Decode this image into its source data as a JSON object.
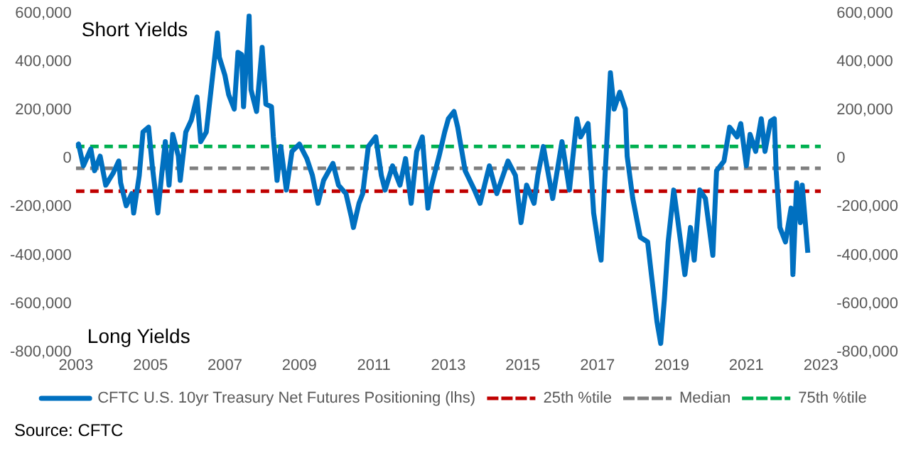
{
  "chart_data": {
    "type": "line",
    "x": [
      2003.0,
      2003.07,
      2003.2,
      2003.4,
      2003.5,
      2003.65,
      2003.8,
      2004.0,
      2004.15,
      2004.2,
      2004.35,
      2004.5,
      2004.55,
      2004.7,
      2004.8,
      2004.95,
      2005.05,
      2005.2,
      2005.3,
      2005.4,
      2005.5,
      2005.6,
      2005.75,
      2005.8,
      2005.95,
      2006.1,
      2006.25,
      2006.35,
      2006.5,
      2006.65,
      2006.8,
      2006.85,
      2007.0,
      2007.1,
      2007.25,
      2007.35,
      2007.45,
      2007.5,
      2007.65,
      2007.7,
      2007.85,
      2008.0,
      2008.1,
      2008.25,
      2008.3,
      2008.4,
      2008.5,
      2008.65,
      2008.8,
      2009.0,
      2009.2,
      2009.35,
      2009.5,
      2009.65,
      2009.9,
      2010.05,
      2010.25,
      2010.4,
      2010.45,
      2010.6,
      2010.7,
      2010.85,
      2011.05,
      2011.2,
      2011.3,
      2011.5,
      2011.7,
      2011.85,
      2012.0,
      2012.15,
      2012.3,
      2012.45,
      2012.55,
      2012.75,
      2012.9,
      2013.0,
      2013.15,
      2013.25,
      2013.45,
      2013.7,
      2013.85,
      2014.1,
      2014.3,
      2014.6,
      2014.8,
      2014.95,
      2015.1,
      2015.3,
      2015.4,
      2015.55,
      2015.8,
      2016.05,
      2016.25,
      2016.45,
      2016.55,
      2016.75,
      2016.9,
      2017.05,
      2017.1,
      2017.2,
      2017.35,
      2017.45,
      2017.6,
      2017.75,
      2017.8,
      2017.95,
      2018.15,
      2018.35,
      2018.45,
      2018.6,
      2018.7,
      2018.8,
      2018.9,
      2019.05,
      2019.15,
      2019.35,
      2019.5,
      2019.6,
      2019.75,
      2019.9,
      2020.1,
      2020.2,
      2020.4,
      2020.55,
      2020.75,
      2020.85,
      2021.0,
      2021.1,
      2021.25,
      2021.4,
      2021.5,
      2021.65,
      2021.75,
      2021.8,
      2021.9,
      2022.05,
      2022.2,
      2022.25,
      2022.35,
      2022.45,
      2022.5,
      2022.65
    ],
    "series": [
      {
        "name": "CFTC U.S. 10yr Treasury Net Futures Positioning (lhs)",
        "color": "#0070c0",
        "values": [
          50000,
          60000,
          -30000,
          40000,
          -50000,
          10000,
          -110000,
          -60000,
          -10000,
          -100000,
          -195000,
          -145000,
          -225000,
          -70000,
          110000,
          130000,
          -30000,
          -225000,
          -70000,
          70000,
          -110000,
          100000,
          10000,
          -90000,
          110000,
          160000,
          255000,
          70000,
          110000,
          315000,
          520000,
          420000,
          345000,
          265000,
          205000,
          440000,
          430000,
          215000,
          590000,
          285000,
          195000,
          460000,
          225000,
          215000,
          90000,
          -90000,
          50000,
          -130000,
          30000,
          60000,
          0,
          -70000,
          -185000,
          -90000,
          -20000,
          -110000,
          -145000,
          -245000,
          -285000,
          -185000,
          -145000,
          50000,
          90000,
          -70000,
          -130000,
          -30000,
          -110000,
          0,
          -185000,
          30000,
          90000,
          -205000,
          -110000,
          10000,
          110000,
          165000,
          195000,
          130000,
          -50000,
          -130000,
          -185000,
          -30000,
          -145000,
          -10000,
          -70000,
          -265000,
          -110000,
          -185000,
          -70000,
          50000,
          -165000,
          70000,
          -130000,
          165000,
          90000,
          145000,
          -225000,
          -380000,
          -420000,
          -90000,
          355000,
          205000,
          275000,
          205000,
          10000,
          -165000,
          -325000,
          -345000,
          -480000,
          -675000,
          -765000,
          -580000,
          -345000,
          -130000,
          -245000,
          -480000,
          -285000,
          -420000,
          -130000,
          -165000,
          -400000,
          -50000,
          -10000,
          130000,
          90000,
          145000,
          -30000,
          100000,
          30000,
          165000,
          30000,
          155000,
          165000,
          -50000,
          -285000,
          -345000,
          -205000,
          -480000,
          -100000,
          -265000,
          -110000,
          -390000
        ]
      }
    ],
    "ref_lines": [
      {
        "axis": "y",
        "value": -135000,
        "label": "25th %tile",
        "color": "#c00000",
        "line_style": "dashed"
      },
      {
        "axis": "y",
        "value": -40000,
        "label": "Median",
        "color": "#808080",
        "line_style": "dashed"
      },
      {
        "axis": "y",
        "value": 50000,
        "label": "75th %tile",
        "color": "#00b050",
        "line_style": "dashed"
      }
    ],
    "xlim": [
      2003,
      2023
    ],
    "xticks": [
      2003,
      2005,
      2007,
      2009,
      2011,
      2013,
      2015,
      2017,
      2019,
      2021,
      2023
    ],
    "ylim": [
      -800000,
      600000
    ],
    "yticks": [
      {
        "value": -800000,
        "label": "-800,000"
      },
      {
        "value": -600000,
        "label": "-600,000"
      },
      {
        "value": -400000,
        "label": "-400,000"
      },
      {
        "value": -200000,
        "label": "-200,000"
      },
      0,
      {
        "value": 200000,
        "label": "200,000"
      },
      {
        "value": 400000,
        "label": "400,000"
      },
      {
        "value": 600000,
        "label": "600,000"
      }
    ],
    "y2lim": [
      -800000,
      600000
    ],
    "y2ticks": [
      {
        "value": -800000,
        "label": "-800,000"
      },
      {
        "value": -600000,
        "label": "-600,000"
      },
      {
        "value": -400000,
        "label": "-400,000"
      },
      {
        "value": -200000,
        "label": "-200,000"
      },
      0,
      {
        "value": 200000,
        "label": "200,000"
      },
      {
        "value": 400000,
        "label": "400,000"
      },
      {
        "value": 600000,
        "label": "600,000"
      }
    ],
    "grid": false,
    "legend": "bottom",
    "line_style": "solid",
    "marker": "none",
    "annotations": [
      "Short Yields",
      "Long Yields",
      "Source: CFTC"
    ]
  }
}
